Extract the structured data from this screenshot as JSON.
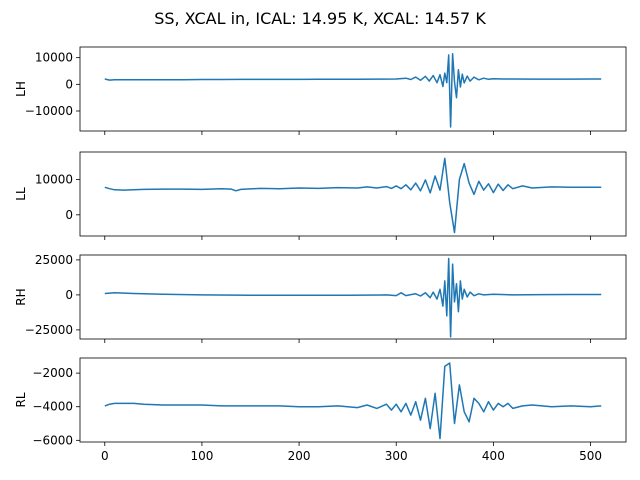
{
  "figure_title": "SS, XCAL in, ICAL: 14.95 K, XCAL: 14.57 K",
  "line_color": "#1f77b4",
  "chart_data": [
    {
      "type": "line",
      "ylabel": "LH",
      "xlim": [
        -25.5,
        536.5
      ],
      "ylim": [
        -17500,
        14000
      ],
      "yticks": [
        -10000,
        0,
        10000
      ],
      "yticklabels": [
        "−10000",
        "0",
        "10000"
      ],
      "x": [
        0,
        5,
        10,
        20,
        40,
        60,
        80,
        100,
        120,
        140,
        160,
        180,
        200,
        220,
        240,
        260,
        280,
        300,
        310,
        315,
        320,
        325,
        330,
        334,
        338,
        342,
        345,
        348,
        350,
        352,
        354,
        356,
        358,
        360,
        362,
        364,
        366,
        368,
        370,
        373,
        376,
        380,
        385,
        390,
        395,
        400,
        410,
        420,
        440,
        460,
        480,
        500,
        511
      ],
      "y": [
        2000,
        1600,
        1700,
        1700,
        1700,
        1750,
        1750,
        1800,
        1800,
        1850,
        1850,
        1850,
        1850,
        1900,
        1900,
        1900,
        1950,
        2000,
        2300,
        1800,
        2700,
        1500,
        3000,
        1200,
        3300,
        600,
        3600,
        -800,
        4200,
        600,
        11000,
        -16000,
        11500,
        900,
        -5000,
        5500,
        -1000,
        3800,
        500,
        3100,
        1200,
        2700,
        1700,
        2300,
        1900,
        2100,
        2000,
        2000,
        1950,
        1950,
        1950,
        2000,
        2000
      ]
    },
    {
      "type": "line",
      "ylabel": "LL",
      "xlim": [
        -25.5,
        536.5
      ],
      "ylim": [
        -6000,
        17800
      ],
      "yticks": [
        0,
        10000
      ],
      "yticklabels": [
        "0",
        "10000"
      ],
      "x": [
        0,
        5,
        10,
        20,
        40,
        60,
        80,
        100,
        120,
        130,
        135,
        140,
        160,
        180,
        200,
        220,
        240,
        260,
        270,
        280,
        290,
        295,
        300,
        305,
        310,
        315,
        320,
        325,
        330,
        335,
        340,
        345,
        350,
        355,
        360,
        365,
        370,
        375,
        380,
        385,
        390,
        395,
        400,
        405,
        410,
        415,
        420,
        430,
        440,
        460,
        480,
        500,
        511
      ],
      "y": [
        7800,
        7400,
        7100,
        7000,
        7200,
        7300,
        7300,
        7200,
        7400,
        7300,
        6800,
        7200,
        7500,
        7400,
        7600,
        7500,
        7700,
        7600,
        7900,
        7600,
        8000,
        7500,
        8200,
        7400,
        8500,
        7100,
        9000,
        6800,
        9900,
        6200,
        11000,
        7000,
        16000,
        3500,
        -5000,
        10000,
        14500,
        9000,
        5800,
        9500,
        7000,
        8800,
        6300,
        8700,
        6900,
        8500,
        7400,
        8200,
        7600,
        7900,
        7800,
        7800,
        7800
      ]
    },
    {
      "type": "line",
      "ylabel": "RH",
      "xlim": [
        -25.5,
        536.5
      ],
      "ylim": [
        -31500,
        28500
      ],
      "yticks": [
        -25000,
        0,
        25000
      ],
      "yticklabels": [
        "−25000",
        "0",
        "25000"
      ],
      "x": [
        0,
        10,
        30,
        60,
        100,
        150,
        200,
        250,
        290,
        300,
        305,
        310,
        315,
        320,
        325,
        330,
        335,
        338,
        342,
        345,
        348,
        350,
        352,
        354,
        356,
        358,
        360,
        362,
        364,
        366,
        368,
        370,
        373,
        376,
        380,
        385,
        390,
        400,
        420,
        450,
        480,
        511
      ],
      "y": [
        1000,
        1500,
        1000,
        500,
        0,
        -200,
        -300,
        -300,
        0,
        -500,
        1500,
        -500,
        200,
        800,
        -800,
        1500,
        -2000,
        2000,
        -3000,
        4000,
        -8000,
        10000,
        -15000,
        26000,
        -30000,
        22000,
        -5000,
        8000,
        -12000,
        10000,
        -3000,
        4000,
        -1500,
        2000,
        -600,
        800,
        0,
        500,
        0,
        200,
        300,
        300
      ]
    },
    {
      "type": "line",
      "ylabel": "RL",
      "xlim": [
        -25.5,
        536.5
      ],
      "ylim": [
        -6100,
        -1100
      ],
      "yticks": [
        -6000,
        -4000,
        -2000
      ],
      "yticklabels": [
        "−6000",
        "−4000",
        "−2000"
      ],
      "x": [
        0,
        5,
        10,
        20,
        30,
        40,
        60,
        80,
        100,
        120,
        140,
        160,
        180,
        200,
        220,
        240,
        260,
        270,
        280,
        290,
        295,
        300,
        305,
        310,
        315,
        320,
        325,
        330,
        335,
        340,
        345,
        350,
        355,
        360,
        365,
        370,
        375,
        380,
        385,
        390,
        395,
        400,
        405,
        410,
        415,
        420,
        430,
        440,
        460,
        480,
        500,
        511
      ],
      "y": [
        -3950,
        -3850,
        -3800,
        -3800,
        -3800,
        -3850,
        -3900,
        -3900,
        -3900,
        -3950,
        -3950,
        -3950,
        -3950,
        -4000,
        -4000,
        -3950,
        -4050,
        -3900,
        -4100,
        -3850,
        -4200,
        -3850,
        -4300,
        -3800,
        -4500,
        -3700,
        -4800,
        -3500,
        -5300,
        -3200,
        -5900,
        -1600,
        -1400,
        -5000,
        -2700,
        -4300,
        -4900,
        -3500,
        -3800,
        -4300,
        -3700,
        -4200,
        -3800,
        -4000,
        -3800,
        -4100,
        -3950,
        -3900,
        -4000,
        -3950,
        -4000,
        -3950
      ]
    }
  ],
  "xaxis": {
    "ticks": [
      0,
      100,
      200,
      300,
      400,
      500
    ],
    "ticklabels": [
      "0",
      "100",
      "200",
      "300",
      "400",
      "500"
    ]
  }
}
